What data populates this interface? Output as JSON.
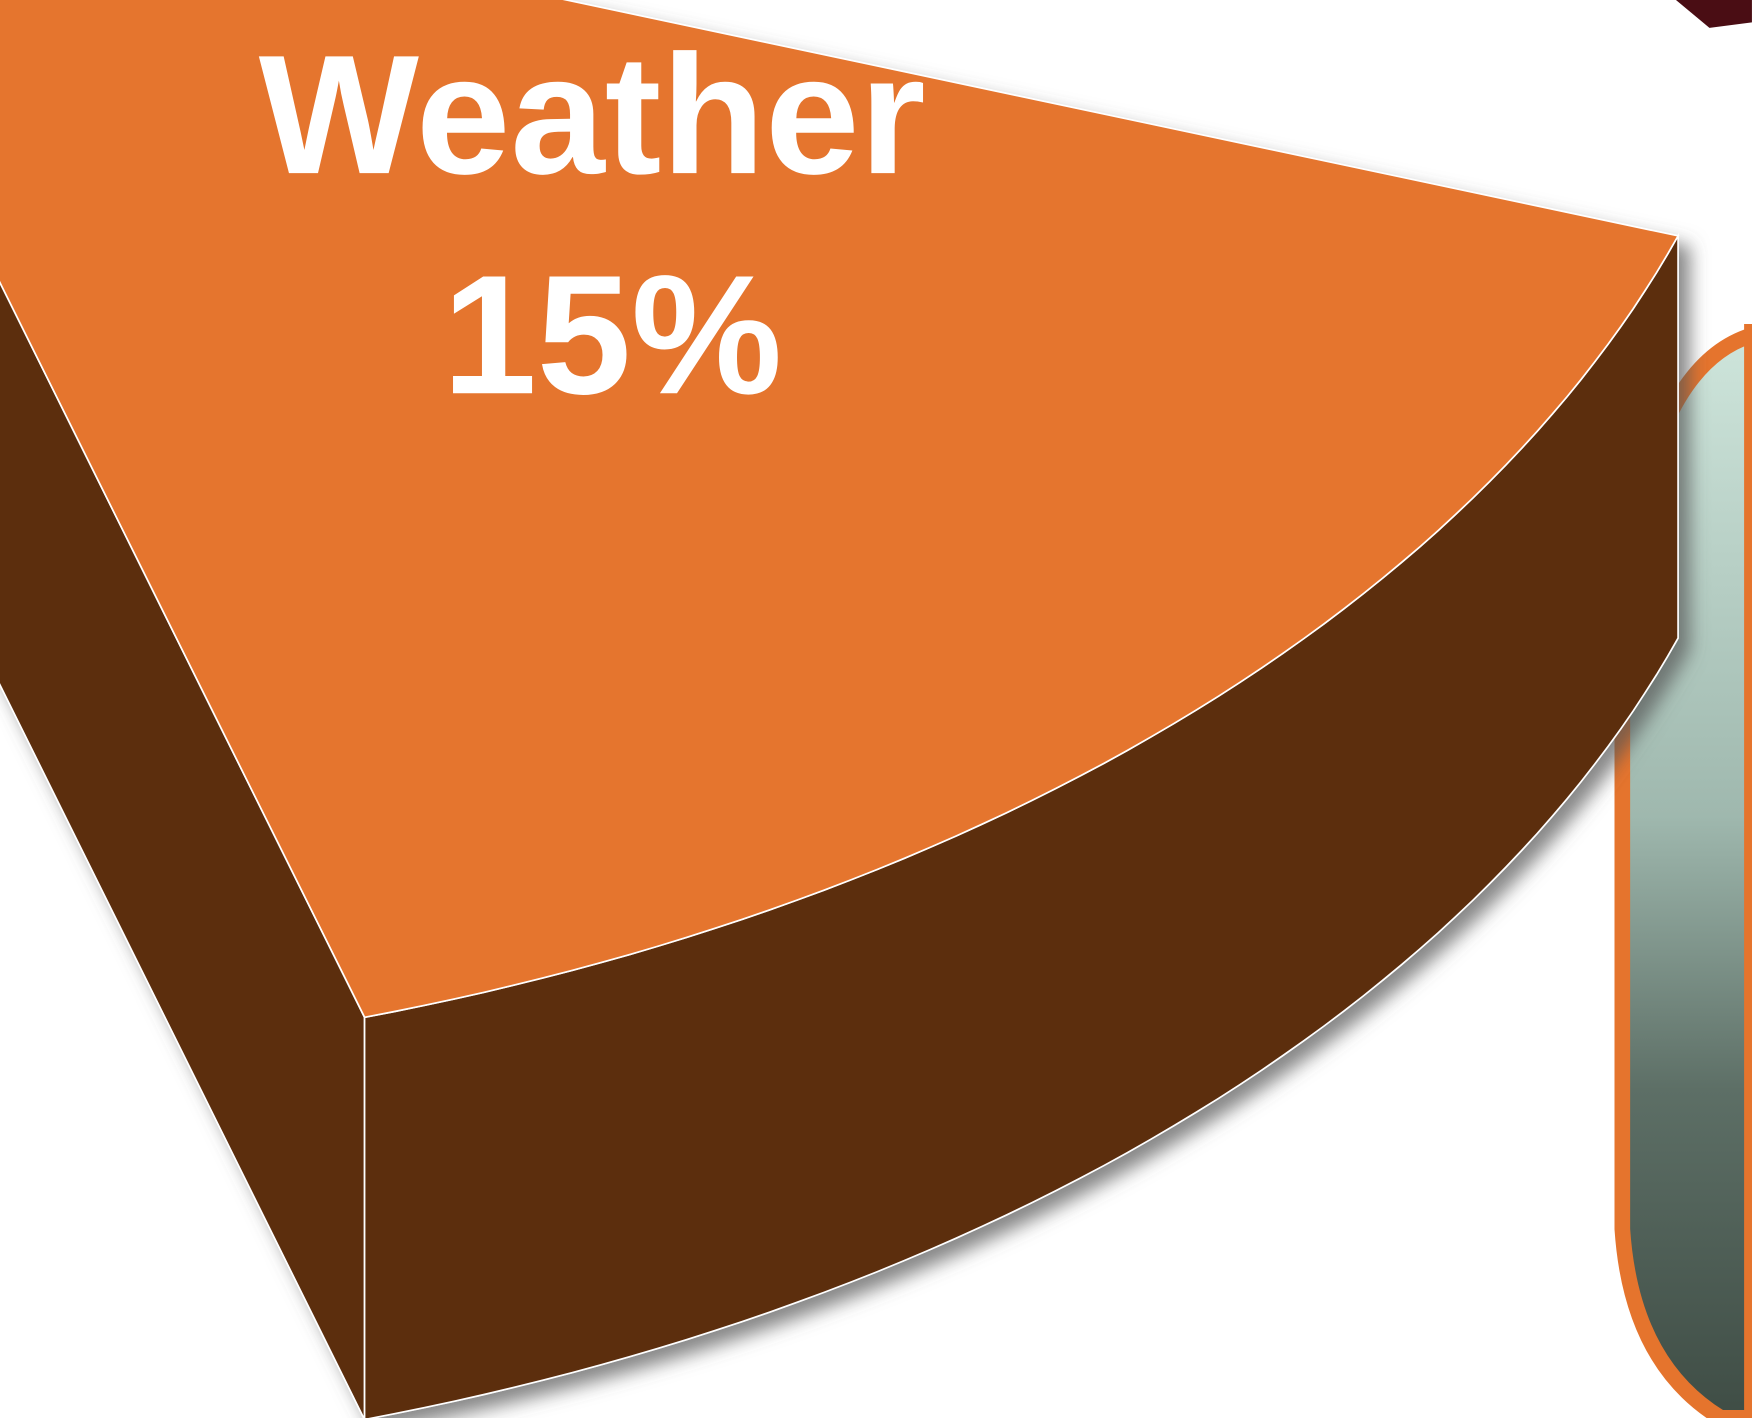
{
  "chart_data": {
    "type": "pie",
    "categories": [
      "Weather"
    ],
    "values": [
      15
    ],
    "value_labels": [
      "15%"
    ],
    "colors": [
      "#e5742d"
    ],
    "side_colors": [
      "#5c2e10"
    ]
  }
}
